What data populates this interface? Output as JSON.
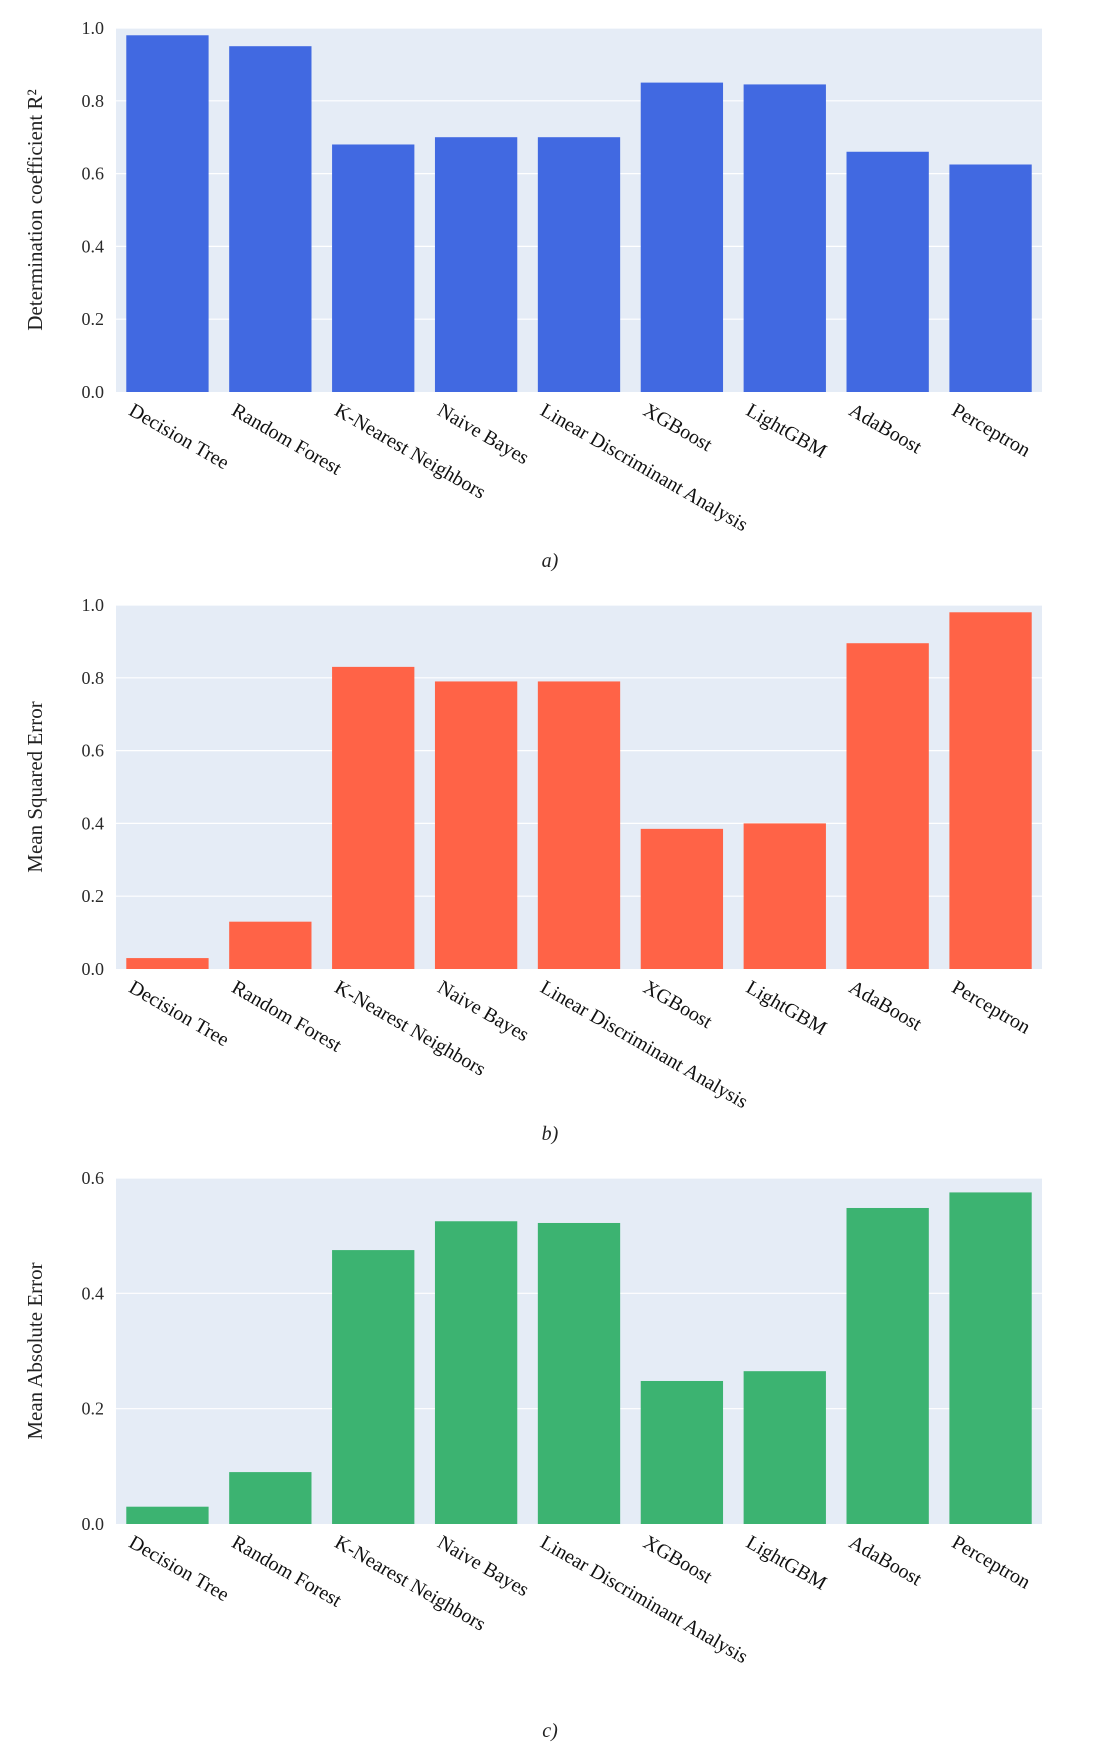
{
  "chart_data": [
    {
      "type": "bar",
      "categories": [
        "Decision Tree",
        "Random Forest",
        "K-Nearest Neighbors",
        "Naive Bayes",
        "Linear Discriminant Analysis",
        "XGBoost",
        "LightGBM",
        "AdaBoost",
        "Perceptron"
      ],
      "values": [
        0.98,
        0.95,
        0.68,
        0.7,
        0.7,
        0.85,
        0.845,
        0.66,
        0.625
      ],
      "ylabel": "Determination coefficient R²",
      "ylim": [
        0,
        1.0
      ],
      "yticks": [
        0,
        0.2,
        0.4,
        0.6,
        0.8,
        1.0
      ],
      "tick_labels": [
        "0.0",
        "0.2",
        "0.4",
        "0.6",
        "0.8",
        "1.0"
      ],
      "color": "#4169e1",
      "grid": true,
      "caption": "a)"
    },
    {
      "type": "bar",
      "categories": [
        "Decision Tree",
        "Random Forest",
        "K-Nearest Neighbors",
        "Naive Bayes",
        "Linear Discriminant Analysis",
        "XGBoost",
        "LightGBM",
        "AdaBoost",
        "Perceptron"
      ],
      "values": [
        0.03,
        0.13,
        0.83,
        0.79,
        0.79,
        0.385,
        0.4,
        0.895,
        0.98
      ],
      "ylabel": "Mean Squared Error",
      "ylim": [
        0,
        1.0
      ],
      "yticks": [
        0,
        0.2,
        0.4,
        0.6,
        0.8,
        1.0
      ],
      "tick_labels": [
        "0.0",
        "0.2",
        "0.4",
        "0.6",
        "0.8",
        "1.0"
      ],
      "color": "#ff6347",
      "grid": true,
      "caption": "b)"
    },
    {
      "type": "bar",
      "categories": [
        "Decision Tree",
        "Random Forest",
        "K-Nearest Neighbors",
        "Naive Bayes",
        "Linear Discriminant Analysis",
        "XGBoost",
        "LightGBM",
        "AdaBoost",
        "Perceptron"
      ],
      "values": [
        0.03,
        0.09,
        0.475,
        0.525,
        0.522,
        0.248,
        0.265,
        0.548,
        0.575
      ],
      "ylabel": "Mean Absolute Error",
      "ylim": [
        0,
        0.6
      ],
      "yticks": [
        0,
        0.2,
        0.4,
        0.6
      ],
      "tick_labels": [
        "0.0",
        "0.2",
        "0.4",
        "0.6"
      ],
      "color": "#3cb371",
      "grid": true,
      "caption": "c)"
    }
  ]
}
